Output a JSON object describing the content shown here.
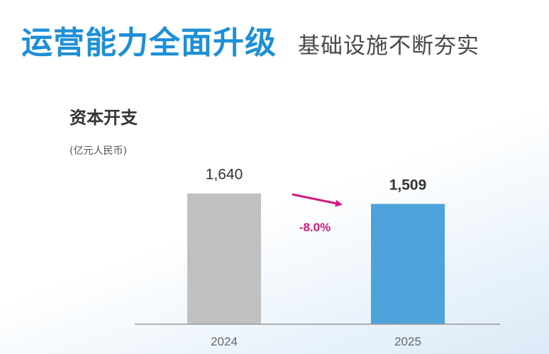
{
  "header": {
    "title": "运营能力全面升级",
    "subtitle": "基础设施不断夯实"
  },
  "chart_data": {
    "type": "bar",
    "title": "资本开支",
    "unit": "(亿元人民币)",
    "categories": [
      "2024",
      "2025"
    ],
    "values": [
      1640,
      1509
    ],
    "value_labels": [
      "1,640",
      "1,509"
    ],
    "colors": [
      "#c0c0c0",
      "#4da3d9"
    ],
    "change_label": "-8.0%",
    "change_color": "#d6197e",
    "ylim": [
      0,
      2100
    ],
    "grid": false,
    "legend": "none"
  }
}
